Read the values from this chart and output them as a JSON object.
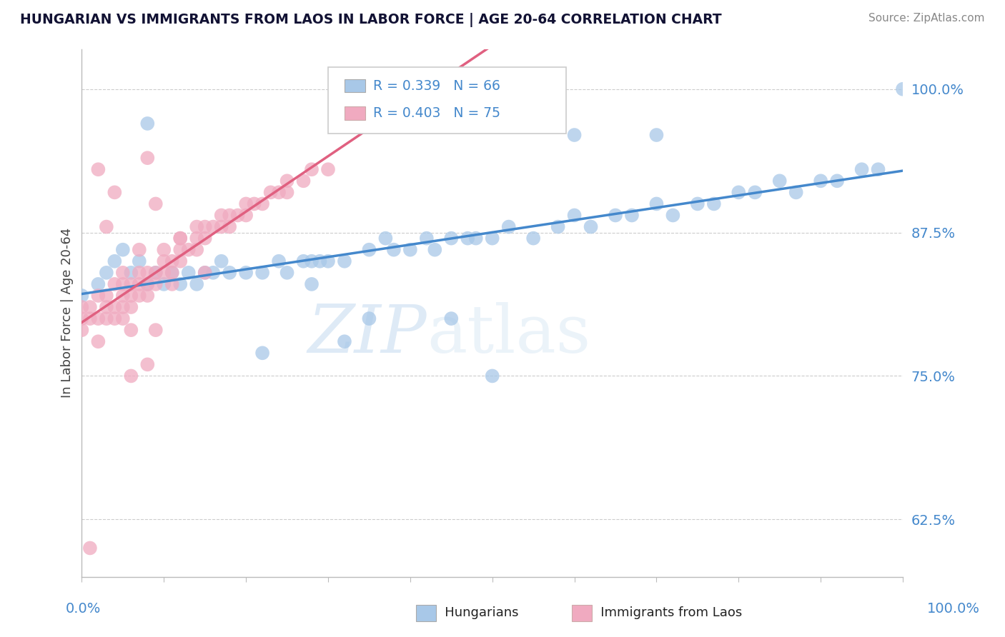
{
  "title": "HUNGARIAN VS IMMIGRANTS FROM LAOS IN LABOR FORCE | AGE 20-64 CORRELATION CHART",
  "source": "Source: ZipAtlas.com",
  "ylabel": "In Labor Force | Age 20-64",
  "color_hungarian": "#a8c8e8",
  "color_laos": "#f0aac0",
  "color_hungarian_line": "#4488cc",
  "color_laos_line": "#e06080",
  "color_tick": "#4488cc",
  "watermark_zip": "ZIP",
  "watermark_atlas": "atlas",
  "legend_r1": "R = 0.339",
  "legend_n1": "N = 66",
  "legend_r2": "R = 0.403",
  "legend_n2": "N = 75",
  "hungarian_x": [
    0.0,
    0.02,
    0.03,
    0.04,
    0.05,
    0.06,
    0.07,
    0.08,
    0.09,
    0.1,
    0.11,
    0.12,
    0.13,
    0.14,
    0.15,
    0.16,
    0.17,
    0.18,
    0.2,
    0.22,
    0.24,
    0.25,
    0.27,
    0.28,
    0.29,
    0.3,
    0.32,
    0.35,
    0.37,
    0.38,
    0.4,
    0.42,
    0.43,
    0.45,
    0.47,
    0.48,
    0.5,
    0.52,
    0.55,
    0.58,
    0.6,
    0.62,
    0.65,
    0.67,
    0.7,
    0.72,
    0.75,
    0.77,
    0.8,
    0.82,
    0.85,
    0.87,
    0.9,
    0.92,
    0.95,
    0.97,
    1.0,
    0.5,
    0.08,
    0.35,
    0.45,
    0.22,
    0.32,
    0.6,
    0.7,
    0.28
  ],
  "hungarian_y": [
    0.82,
    0.83,
    0.84,
    0.85,
    0.86,
    0.84,
    0.85,
    0.83,
    0.84,
    0.83,
    0.84,
    0.83,
    0.84,
    0.83,
    0.84,
    0.84,
    0.85,
    0.84,
    0.84,
    0.84,
    0.85,
    0.84,
    0.85,
    0.85,
    0.85,
    0.85,
    0.85,
    0.86,
    0.87,
    0.86,
    0.86,
    0.87,
    0.86,
    0.87,
    0.87,
    0.87,
    0.87,
    0.88,
    0.87,
    0.88,
    0.89,
    0.88,
    0.89,
    0.89,
    0.9,
    0.89,
    0.9,
    0.9,
    0.91,
    0.91,
    0.92,
    0.91,
    0.92,
    0.92,
    0.93,
    0.93,
    1.0,
    0.75,
    0.97,
    0.8,
    0.8,
    0.77,
    0.78,
    0.96,
    0.96,
    0.83
  ],
  "laos_x": [
    0.0,
    0.0,
    0.0,
    0.01,
    0.01,
    0.02,
    0.02,
    0.02,
    0.03,
    0.03,
    0.03,
    0.04,
    0.04,
    0.04,
    0.05,
    0.05,
    0.05,
    0.05,
    0.06,
    0.06,
    0.06,
    0.07,
    0.07,
    0.07,
    0.08,
    0.08,
    0.08,
    0.09,
    0.09,
    0.1,
    0.1,
    0.1,
    0.11,
    0.11,
    0.12,
    0.12,
    0.12,
    0.13,
    0.14,
    0.14,
    0.15,
    0.15,
    0.16,
    0.17,
    0.17,
    0.18,
    0.18,
    0.19,
    0.2,
    0.2,
    0.21,
    0.22,
    0.23,
    0.24,
    0.25,
    0.25,
    0.27,
    0.28,
    0.3,
    0.06,
    0.08,
    0.03,
    0.12,
    0.14,
    0.09,
    0.04,
    0.07,
    0.05,
    0.06,
    0.09,
    0.11,
    0.15,
    0.02,
    0.08,
    0.01
  ],
  "laos_y": [
    0.79,
    0.8,
    0.81,
    0.8,
    0.81,
    0.78,
    0.8,
    0.82,
    0.8,
    0.81,
    0.82,
    0.8,
    0.81,
    0.83,
    0.8,
    0.81,
    0.82,
    0.83,
    0.81,
    0.82,
    0.83,
    0.82,
    0.83,
    0.84,
    0.82,
    0.83,
    0.84,
    0.83,
    0.84,
    0.84,
    0.85,
    0.86,
    0.84,
    0.85,
    0.85,
    0.86,
    0.87,
    0.86,
    0.86,
    0.87,
    0.87,
    0.88,
    0.88,
    0.88,
    0.89,
    0.88,
    0.89,
    0.89,
    0.89,
    0.9,
    0.9,
    0.9,
    0.91,
    0.91,
    0.91,
    0.92,
    0.92,
    0.93,
    0.93,
    0.75,
    0.76,
    0.88,
    0.87,
    0.88,
    0.9,
    0.91,
    0.86,
    0.84,
    0.79,
    0.79,
    0.83,
    0.84,
    0.93,
    0.94,
    0.6
  ],
  "xlim": [
    0.0,
    1.0
  ],
  "ylim": [
    0.575,
    1.035
  ],
  "yticks": [
    0.625,
    0.75,
    0.875,
    1.0
  ],
  "ytick_labels": [
    "62.5%",
    "75.0%",
    "87.5%",
    "100.0%"
  ]
}
